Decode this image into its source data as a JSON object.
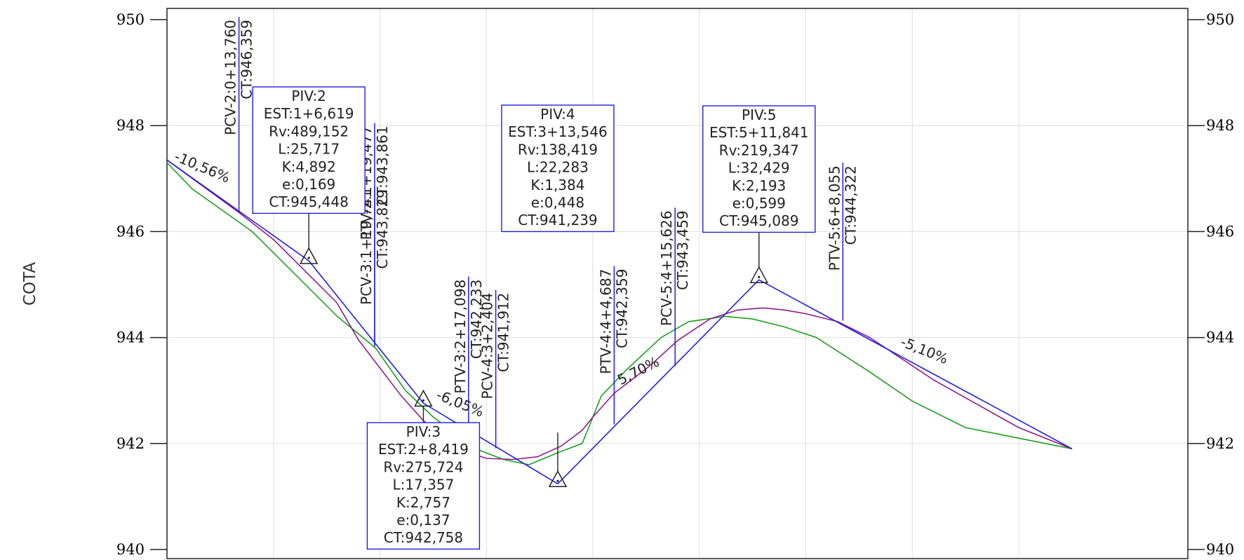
{
  "chart_data": {
    "type": "line",
    "ylabel": "COTA",
    "ylim": [
      940,
      950
    ],
    "xlim": [
      0,
      425
    ],
    "yticks": [
      {
        "value": 950,
        "label": "950",
        "major": true
      },
      {
        "value": 948,
        "label": "948",
        "major": false
      },
      {
        "value": 946,
        "label": "946",
        "major": false
      },
      {
        "value": 944,
        "label": "944",
        "major": false
      },
      {
        "value": 942,
        "label": "942",
        "major": false
      },
      {
        "value": 940,
        "label": "940",
        "major": true
      }
    ],
    "grid_x": [
      50,
      100,
      150,
      200,
      250,
      300,
      350,
      400
    ],
    "grid_y": [
      942,
      944,
      946,
      948
    ],
    "series": [
      {
        "key": "tangent",
        "color": "#1f1fe0",
        "points": [
          [
            0,
            947.35
          ],
          [
            66.6,
            945.45
          ],
          [
            120.4,
            942.76
          ],
          [
            183.5,
            941.24
          ],
          [
            278.0,
            945.09
          ],
          [
            425.0,
            941.9
          ]
        ]
      },
      {
        "key": "profile",
        "color": "#8a1f8a",
        "points": [
          [
            0,
            947.35
          ],
          [
            33.8,
            946.36
          ],
          [
            50,
            945.85
          ],
          [
            79.7,
            944.66
          ],
          [
            90,
            943.95
          ],
          [
            110,
            942.9
          ],
          [
            120,
            942.45
          ],
          [
            130,
            942.1
          ],
          [
            140,
            941.85
          ],
          [
            150,
            941.72
          ],
          [
            162.4,
            941.7
          ],
          [
            174,
            941.75
          ],
          [
            185,
            941.95
          ],
          [
            195,
            942.25
          ],
          [
            200,
            942.5
          ],
          [
            210,
            942.95
          ],
          [
            226.6,
            943.46
          ],
          [
            240,
            943.95
          ],
          [
            255,
            944.35
          ],
          [
            268,
            944.52
          ],
          [
            280,
            944.56
          ],
          [
            290,
            944.52
          ],
          [
            300,
            944.45
          ],
          [
            315,
            944.3
          ],
          [
            330,
            944.0
          ],
          [
            345,
            943.6
          ],
          [
            360,
            943.2
          ],
          [
            380,
            942.75
          ],
          [
            400,
            942.3
          ],
          [
            425,
            941.9
          ]
        ]
      },
      {
        "key": "terrain",
        "color": "#1e9e1e",
        "points": [
          [
            0,
            947.3
          ],
          [
            12,
            946.8
          ],
          [
            40,
            946.0
          ],
          [
            60,
            945.2
          ],
          [
            80,
            944.4
          ],
          [
            98,
            943.8
          ],
          [
            112,
            943.0
          ],
          [
            125,
            942.5
          ],
          [
            145,
            941.9
          ],
          [
            158,
            941.7
          ],
          [
            170,
            941.6
          ],
          [
            185,
            941.85
          ],
          [
            195,
            942.0
          ],
          [
            204,
            942.9
          ],
          [
            216,
            943.4
          ],
          [
            232,
            944.0
          ],
          [
            245,
            944.3
          ],
          [
            262,
            944.4
          ],
          [
            275,
            944.35
          ],
          [
            290,
            944.2
          ],
          [
            305,
            944.0
          ],
          [
            330,
            943.35
          ],
          [
            350,
            942.8
          ],
          [
            375,
            942.3
          ],
          [
            400,
            942.1
          ],
          [
            425,
            941.9
          ]
        ]
      }
    ],
    "pivs": [
      {
        "name": "PIV:2",
        "x": 66.6,
        "y": 945.45,
        "box_lines": [
          "PIV:2",
          "EST:1+6,619",
          "Rv:489,152",
          "L:25,717",
          "K:4,892",
          "e:0,169",
          "CT:945,448"
        ],
        "box_position": "above"
      },
      {
        "name": "PIV:3",
        "x": 120.4,
        "y": 942.76,
        "box_lines": [
          "PIV:3",
          "EST:2+8,419",
          "Rv:275,724",
          "L:17,357",
          "K:2,757",
          "e:0,137",
          "CT:942,758"
        ],
        "box_position": "below"
      },
      {
        "name": "PIV:4",
        "x": 183.5,
        "y": 941.24,
        "box_lines": [
          "PIV:4",
          "EST:3+13,546",
          "Rv:138,419",
          "L:22,283",
          "K:1,384",
          "e:0,448",
          "CT:941,239"
        ],
        "box_position": "above"
      },
      {
        "name": "PIV:5",
        "x": 278.0,
        "y": 945.09,
        "box_lines": [
          "PIV:5",
          "EST:5+11,841",
          "Rv:219,347",
          "L:32,429",
          "K:2,193",
          "e:0,599",
          "CT:945,089"
        ],
        "box_position": "above"
      }
    ],
    "stations": [
      {
        "x": 33.8,
        "y": 946.36,
        "top": 950.05,
        "label1": "PCV-2:0+13,760",
        "label2": "CT:946,359"
      },
      {
        "x": 97.5,
        "y": 943.86,
        "top": 948.05,
        "label1": "PTV-2:1+19,477",
        "label2": "CT:943,861"
      },
      {
        "x": 97.5,
        "y": 943.83,
        "top": 946.85,
        "label1": "PCV-3:1+19,741",
        "label2": "CT:943,829"
      },
      {
        "x": 141.6,
        "y": 942.23,
        "top": 945.15,
        "label1": "PTV-3:2+17,098",
        "label2": "CT:942,233"
      },
      {
        "x": 154.4,
        "y": 941.91,
        "top": 944.9,
        "label1": "PCV-4:3+2,404",
        "label2": "CT:941,912"
      },
      {
        "x": 210.0,
        "y": 942.36,
        "top": 945.35,
        "label1": "PTV-4:4+4,687",
        "label2": "CT:942,359"
      },
      {
        "x": 238.6,
        "y": 943.46,
        "top": 946.45,
        "label1": "PCV-5:4+15,626",
        "label2": "CT:943,459"
      },
      {
        "x": 317.4,
        "y": 944.32,
        "top": 947.3,
        "label1": "PTV-5:6+8,055",
        "label2": "CT:944,322"
      }
    ],
    "grades": [
      {
        "label": "-10,56%",
        "x": 3,
        "y": 947.35,
        "angle": 23
      },
      {
        "label": "-6,05%",
        "x": 126,
        "y": 942.85,
        "angle": 22
      },
      {
        "label": "5,70%",
        "x": 213,
        "y": 943.1,
        "angle": -27
      },
      {
        "label": "-5,10%",
        "x": 344,
        "y": 943.85,
        "angle": 22
      }
    ]
  }
}
